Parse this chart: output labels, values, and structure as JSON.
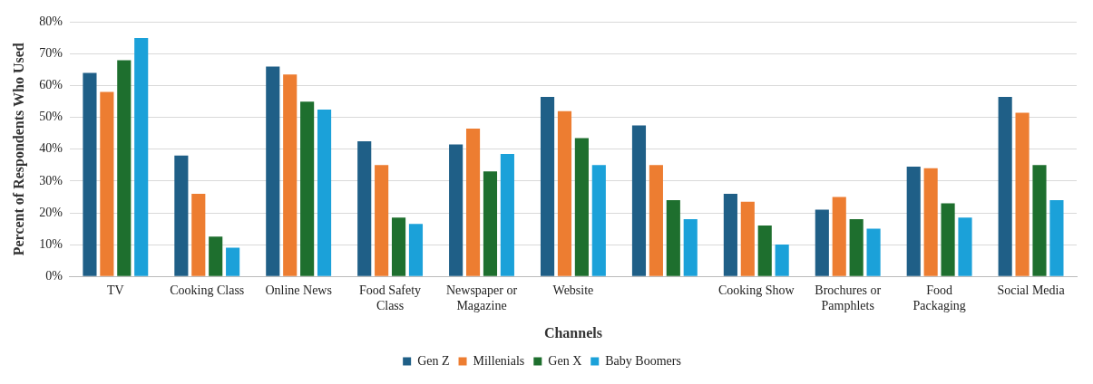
{
  "chart_data": {
    "type": "bar",
    "xlabel": "Channels",
    "ylabel": "Percent of Respondents Who Used",
    "categories": [
      "TV",
      "Cooking Class",
      "Online News",
      "Food Safety Class",
      "Newspaper or Magazine",
      "Website",
      null,
      "Cooking Show",
      "Brochures or Pamphlets",
      "Food Packaging",
      "Social Media"
    ],
    "series": [
      {
        "name": "Gen Z",
        "color": "#1f5f87",
        "values": [
          64,
          38,
          66,
          42.5,
          41.5,
          56.5,
          47.5,
          26,
          21,
          34.5,
          56.5
        ]
      },
      {
        "name": "Millenials",
        "color": "#ed7d31",
        "values": [
          58,
          26,
          63.5,
          35,
          46.5,
          52,
          35,
          23.5,
          25,
          34,
          51.5
        ]
      },
      {
        "name": "Gen X",
        "color": "#1e6f2e",
        "values": [
          68,
          12.5,
          55,
          18.5,
          33,
          43.5,
          24,
          16,
          18,
          23,
          35
        ]
      },
      {
        "name": "Baby Boomers",
        "color": "#1ba1d9",
        "values": [
          75,
          9,
          52.5,
          16.5,
          38.5,
          35,
          18,
          10,
          15,
          18.5,
          24
        ]
      }
    ],
    "ylim": [
      0,
      80
    ],
    "yticks": [
      {
        "value": 0,
        "label": "0%"
      },
      {
        "value": 10,
        "label": "10%"
      },
      {
        "value": 20,
        "label": "20%"
      },
      {
        "value": 30,
        "label": "30%"
      },
      {
        "value": 40,
        "label": "40%"
      },
      {
        "value": 50,
        "label": "50%"
      },
      {
        "value": 60,
        "label": "60%"
      },
      {
        "value": 70,
        "label": "70%"
      },
      {
        "value": 80,
        "label": "80%"
      }
    ],
    "grid": "y",
    "legend": "bottom"
  }
}
